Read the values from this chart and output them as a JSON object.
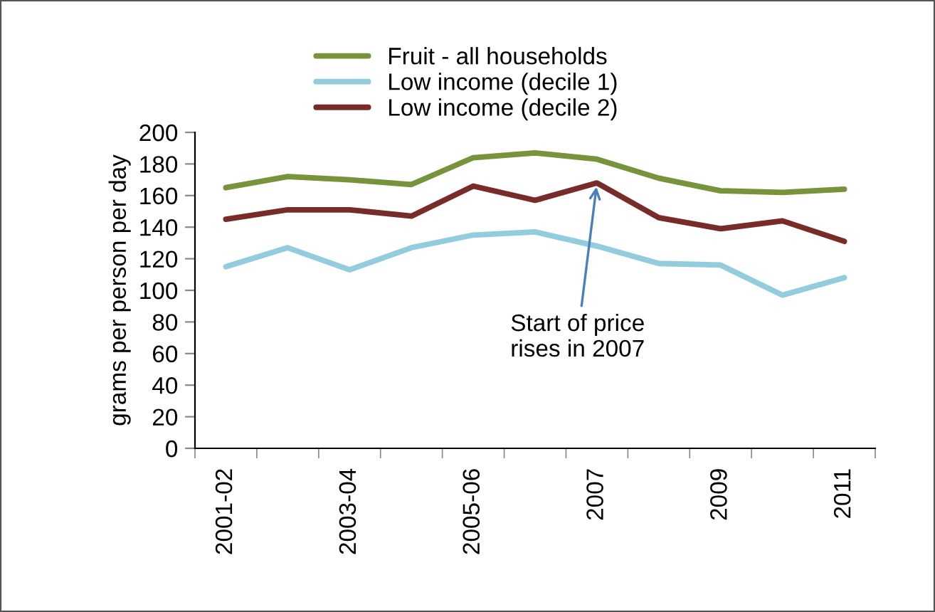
{
  "chart_data": {
    "type": "line",
    "ylabel": "grams per person per day",
    "categories": [
      "2001-02",
      null,
      "2003-04",
      null,
      "2005-06",
      null,
      "2007",
      null,
      "2009",
      null,
      "2011"
    ],
    "series": [
      {
        "name": "Fruit - all households",
        "color": "#77933c",
        "values": [
          165,
          172,
          170,
          167,
          184,
          187,
          183,
          171,
          163,
          162,
          164
        ]
      },
      {
        "name": "Low income (decile 1)",
        "color": "#93cddd",
        "values": [
          115,
          127,
          113,
          127,
          135,
          137,
          128,
          117,
          116,
          97,
          108
        ]
      },
      {
        "name": "Low income (decile 2)",
        "color": "#772c2a",
        "values": [
          145,
          151,
          151,
          147,
          166,
          157,
          168,
          146,
          139,
          144,
          131
        ]
      }
    ],
    "ylim": [
      0,
      200
    ],
    "yticks": [
      0,
      20,
      40,
      60,
      80,
      100,
      120,
      140,
      160,
      180,
      200
    ],
    "grid": false,
    "legend": "top",
    "marker": "none",
    "line_style": "solid",
    "annotations": [
      {
        "text": "Start of price\nrises in 2007",
        "x": "2007",
        "y": 168
      }
    ]
  }
}
